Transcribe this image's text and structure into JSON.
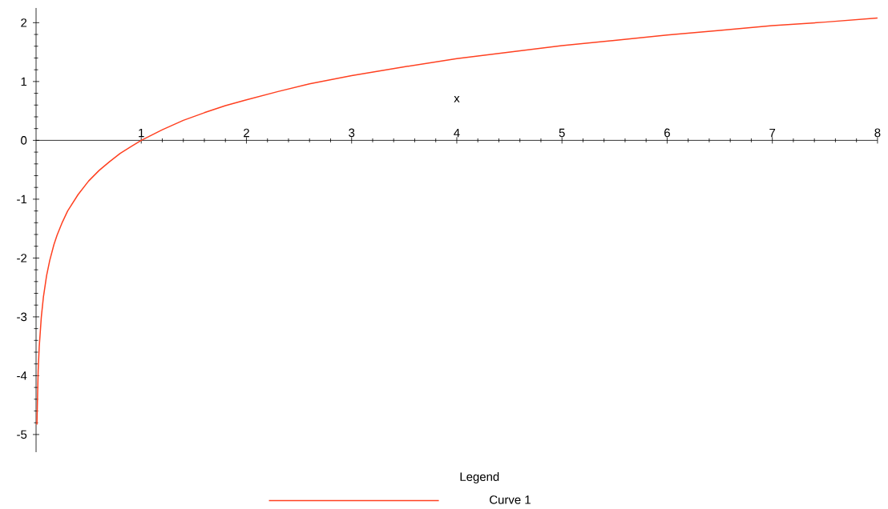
{
  "chart_data": {
    "type": "line",
    "xlabel": "x",
    "legend_title": "Legend",
    "legend": "bottom",
    "marker": "none",
    "line_style": "solid",
    "grid": false,
    "x": [
      0.008,
      0.02,
      0.03,
      0.05,
      0.07,
      0.1,
      0.13,
      0.17,
      0.2,
      0.25,
      0.3,
      0.4,
      0.5,
      0.6,
      0.7,
      0.8,
      0.9,
      1,
      1.2,
      1.4,
      1.6,
      1.8,
      2,
      2.3,
      2.6,
      3,
      3.5,
      4,
      4.5,
      5,
      5.5,
      6,
      6.5,
      7,
      7.5,
      8
    ],
    "series": [
      {
        "name": "Curve 1",
        "color": "#ff4020",
        "values": [
          -4.83,
          -3.91,
          -3.51,
          -3.0,
          -2.66,
          -2.3,
          -2.04,
          -1.77,
          -1.61,
          -1.39,
          -1.2,
          -0.92,
          -0.69,
          -0.51,
          -0.36,
          -0.22,
          -0.11,
          0,
          0.18,
          0.34,
          0.47,
          0.59,
          0.69,
          0.83,
          0.96,
          1.1,
          1.25,
          1.39,
          1.5,
          1.61,
          1.7,
          1.79,
          1.87,
          1.95,
          2.01,
          2.08
        ]
      }
    ],
    "xlim": [
      0,
      8
    ],
    "ylim": [
      -5.3,
      2.25
    ],
    "xticks": [
      1,
      2,
      3,
      4,
      5,
      6,
      7,
      8
    ],
    "yticks": [
      -5,
      -4,
      -3,
      -2,
      -1,
      0,
      1,
      2
    ]
  }
}
